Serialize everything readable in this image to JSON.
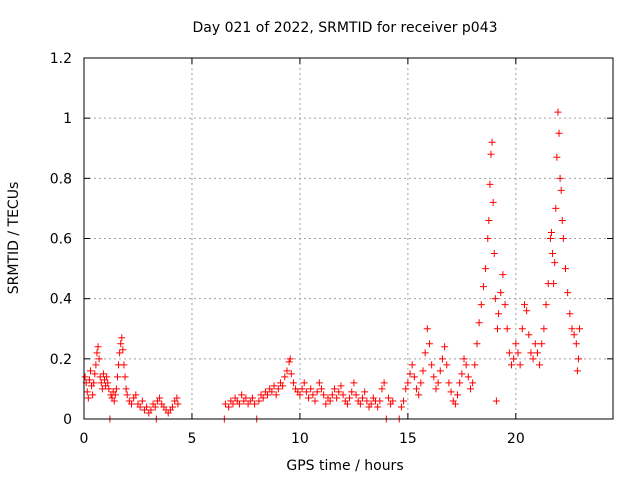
{
  "chart_data": {
    "type": "scatter",
    "title": "Day 021 of 2022, SRMTID for receiver p043",
    "xlabel": "GPS time / hours",
    "ylabel": "SRMTID / TECUs",
    "xlim": [
      0,
      24.5
    ],
    "ylim": [
      0,
      1.2
    ],
    "x_ticks": [
      0,
      5,
      10,
      15,
      20
    ],
    "x_tick_labels": [
      "0",
      "5",
      "10",
      "15",
      "20"
    ],
    "y_ticks": [
      0,
      0.2,
      0.4,
      0.6,
      0.8,
      1.0,
      1.2
    ],
    "y_tick_labels": [
      "0",
      "0.2",
      "0.4",
      "0.6",
      "0.8",
      "1",
      "1.2"
    ],
    "grid": true,
    "marker": "plus",
    "color": "#ff0000",
    "series": [
      {
        "name": "SRMTID",
        "points": [
          [
            0.05,
            0.14
          ],
          [
            0.1,
            0.12
          ],
          [
            0.15,
            0.09
          ],
          [
            0.2,
            0.07
          ],
          [
            0.25,
            0.13
          ],
          [
            0.3,
            0.16
          ],
          [
            0.35,
            0.11
          ],
          [
            0.4,
            0.08
          ],
          [
            0.45,
            0.12
          ],
          [
            0.5,
            0.15
          ],
          [
            0.55,
            0.18
          ],
          [
            0.6,
            0.22
          ],
          [
            0.65,
            0.24
          ],
          [
            0.7,
            0.2
          ],
          [
            0.75,
            0.14
          ],
          [
            0.8,
            0.12
          ],
          [
            0.85,
            0.1
          ],
          [
            0.9,
            0.15
          ],
          [
            0.95,
            0.13
          ],
          [
            1.0,
            0.11
          ],
          [
            1.05,
            0.14
          ],
          [
            1.1,
            0.12
          ],
          [
            1.15,
            0.1
          ],
          [
            1.2,
            0.0
          ],
          [
            1.25,
            0.08
          ],
          [
            1.3,
            0.07
          ],
          [
            1.35,
            0.09
          ],
          [
            1.4,
            0.06
          ],
          [
            1.45,
            0.08
          ],
          [
            1.5,
            0.1
          ],
          [
            1.55,
            0.14
          ],
          [
            1.6,
            0.18
          ],
          [
            1.65,
            0.22
          ],
          [
            1.7,
            0.25
          ],
          [
            1.75,
            0.27
          ],
          [
            1.8,
            0.23
          ],
          [
            1.85,
            0.18
          ],
          [
            1.9,
            0.14
          ],
          [
            1.95,
            0.1
          ],
          [
            2.0,
            0.08
          ],
          [
            2.1,
            0.06
          ],
          [
            2.2,
            0.05
          ],
          [
            2.3,
            0.07
          ],
          [
            2.4,
            0.08
          ],
          [
            2.5,
            0.05
          ],
          [
            2.6,
            0.04
          ],
          [
            2.7,
            0.06
          ],
          [
            2.8,
            0.03
          ],
          [
            2.9,
            0.04
          ],
          [
            3.0,
            0.02
          ],
          [
            3.1,
            0.03
          ],
          [
            3.2,
            0.05
          ],
          [
            3.3,
            0.04
          ],
          [
            3.35,
            0.0
          ],
          [
            3.4,
            0.06
          ],
          [
            3.5,
            0.07
          ],
          [
            3.6,
            0.05
          ],
          [
            3.7,
            0.04
          ],
          [
            3.8,
            0.03
          ],
          [
            3.9,
            0.02
          ],
          [
            4.0,
            0.03
          ],
          [
            4.1,
            0.04
          ],
          [
            4.2,
            0.06
          ],
          [
            4.3,
            0.07
          ],
          [
            4.35,
            0.05
          ],
          [
            6.5,
            0.0
          ],
          [
            6.55,
            0.05
          ],
          [
            6.7,
            0.04
          ],
          [
            6.8,
            0.06
          ],
          [
            6.9,
            0.05
          ],
          [
            7.0,
            0.07
          ],
          [
            7.1,
            0.06
          ],
          [
            7.2,
            0.05
          ],
          [
            7.3,
            0.08
          ],
          [
            7.4,
            0.06
          ],
          [
            7.5,
            0.07
          ],
          [
            7.6,
            0.05
          ],
          [
            7.7,
            0.06
          ],
          [
            7.8,
            0.07
          ],
          [
            7.9,
            0.05
          ],
          [
            8.0,
            0.0
          ],
          [
            8.1,
            0.06
          ],
          [
            8.2,
            0.08
          ],
          [
            8.3,
            0.07
          ],
          [
            8.4,
            0.09
          ],
          [
            8.5,
            0.08
          ],
          [
            8.6,
            0.1
          ],
          [
            8.7,
            0.09
          ],
          [
            8.8,
            0.11
          ],
          [
            8.9,
            0.08
          ],
          [
            9.0,
            0.1
          ],
          [
            9.1,
            0.12
          ],
          [
            9.2,
            0.11
          ],
          [
            9.3,
            0.14
          ],
          [
            9.4,
            0.16
          ],
          [
            9.5,
            0.19
          ],
          [
            9.55,
            0.2
          ],
          [
            9.6,
            0.15
          ],
          [
            9.7,
            0.12
          ],
          [
            9.8,
            0.1
          ],
          [
            9.9,
            0.09
          ],
          [
            10.0,
            0.08
          ],
          [
            10.1,
            0.1
          ],
          [
            10.2,
            0.12
          ],
          [
            10.3,
            0.09
          ],
          [
            10.4,
            0.07
          ],
          [
            10.5,
            0.1
          ],
          [
            10.6,
            0.08
          ],
          [
            10.7,
            0.06
          ],
          [
            10.8,
            0.09
          ],
          [
            10.9,
            0.12
          ],
          [
            11.0,
            0.1
          ],
          [
            11.1,
            0.08
          ],
          [
            11.2,
            0.05
          ],
          [
            11.3,
            0.07
          ],
          [
            11.4,
            0.06
          ],
          [
            11.5,
            0.08
          ],
          [
            11.6,
            0.1
          ],
          [
            11.7,
            0.07
          ],
          [
            11.8,
            0.09
          ],
          [
            11.9,
            0.11
          ],
          [
            12.0,
            0.08
          ],
          [
            12.1,
            0.06
          ],
          [
            12.2,
            0.05
          ],
          [
            12.3,
            0.07
          ],
          [
            12.4,
            0.09
          ],
          [
            12.5,
            0.12
          ],
          [
            12.6,
            0.08
          ],
          [
            12.7,
            0.06
          ],
          [
            12.8,
            0.05
          ],
          [
            12.9,
            0.07
          ],
          [
            13.0,
            0.09
          ],
          [
            13.1,
            0.06
          ],
          [
            13.2,
            0.04
          ],
          [
            13.3,
            0.05
          ],
          [
            13.4,
            0.07
          ],
          [
            13.5,
            0.06
          ],
          [
            13.6,
            0.04
          ],
          [
            13.7,
            0.06
          ],
          [
            13.8,
            0.1
          ],
          [
            13.9,
            0.12
          ],
          [
            14.0,
            0.0
          ],
          [
            14.1,
            0.07
          ],
          [
            14.2,
            0.05
          ],
          [
            14.3,
            0.06
          ],
          [
            14.6,
            0.0
          ],
          [
            14.7,
            0.04
          ],
          [
            14.8,
            0.06
          ],
          [
            14.9,
            0.1
          ],
          [
            15.0,
            0.12
          ],
          [
            15.1,
            0.15
          ],
          [
            15.2,
            0.18
          ],
          [
            15.3,
            0.14
          ],
          [
            15.4,
            0.1
          ],
          [
            15.5,
            0.08
          ],
          [
            15.6,
            0.12
          ],
          [
            15.7,
            0.16
          ],
          [
            15.8,
            0.22
          ],
          [
            15.9,
            0.3
          ],
          [
            16.0,
            0.25
          ],
          [
            16.1,
            0.18
          ],
          [
            16.2,
            0.14
          ],
          [
            16.3,
            0.1
          ],
          [
            16.4,
            0.12
          ],
          [
            16.5,
            0.16
          ],
          [
            16.6,
            0.2
          ],
          [
            16.7,
            0.24
          ],
          [
            16.8,
            0.18
          ],
          [
            16.9,
            0.12
          ],
          [
            17.0,
            0.09
          ],
          [
            17.1,
            0.06
          ],
          [
            17.2,
            0.05
          ],
          [
            17.3,
            0.08
          ],
          [
            17.4,
            0.12
          ],
          [
            17.5,
            0.15
          ],
          [
            17.6,
            0.2
          ],
          [
            17.7,
            0.18
          ],
          [
            17.8,
            0.14
          ],
          [
            17.9,
            0.1
          ],
          [
            18.0,
            0.12
          ],
          [
            18.1,
            0.18
          ],
          [
            18.2,
            0.25
          ],
          [
            18.3,
            0.32
          ],
          [
            18.4,
            0.38
          ],
          [
            18.5,
            0.44
          ],
          [
            18.6,
            0.5
          ],
          [
            18.7,
            0.6
          ],
          [
            18.75,
            0.66
          ],
          [
            18.8,
            0.78
          ],
          [
            18.85,
            0.88
          ],
          [
            18.9,
            0.92
          ],
          [
            18.95,
            0.72
          ],
          [
            19.0,
            0.55
          ],
          [
            19.05,
            0.4
          ],
          [
            19.1,
            0.06
          ],
          [
            19.15,
            0.3
          ],
          [
            19.2,
            0.35
          ],
          [
            19.3,
            0.42
          ],
          [
            19.4,
            0.48
          ],
          [
            19.5,
            0.38
          ],
          [
            19.6,
            0.3
          ],
          [
            19.7,
            0.22
          ],
          [
            19.8,
            0.18
          ],
          [
            19.9,
            0.2
          ],
          [
            20.0,
            0.25
          ],
          [
            20.1,
            0.22
          ],
          [
            20.2,
            0.18
          ],
          [
            20.3,
            0.3
          ],
          [
            20.4,
            0.38
          ],
          [
            20.5,
            0.36
          ],
          [
            20.6,
            0.28
          ],
          [
            20.7,
            0.22
          ],
          [
            20.8,
            0.2
          ],
          [
            20.9,
            0.25
          ],
          [
            21.0,
            0.22
          ],
          [
            21.1,
            0.18
          ],
          [
            21.2,
            0.25
          ],
          [
            21.3,
            0.3
          ],
          [
            21.4,
            0.38
          ],
          [
            21.5,
            0.45
          ],
          [
            21.6,
            0.6
          ],
          [
            21.65,
            0.62
          ],
          [
            21.7,
            0.55
          ],
          [
            21.75,
            0.45
          ],
          [
            21.8,
            0.52
          ],
          [
            21.85,
            0.7
          ],
          [
            21.9,
            0.87
          ],
          [
            21.95,
            1.02
          ],
          [
            22.0,
            0.95
          ],
          [
            22.05,
            0.8
          ],
          [
            22.1,
            0.76
          ],
          [
            22.15,
            0.66
          ],
          [
            22.2,
            0.6
          ],
          [
            22.3,
            0.5
          ],
          [
            22.4,
            0.42
          ],
          [
            22.5,
            0.35
          ],
          [
            22.6,
            0.3
          ],
          [
            22.7,
            0.28
          ],
          [
            22.8,
            0.25
          ],
          [
            22.85,
            0.16
          ],
          [
            22.9,
            0.2
          ],
          [
            22.95,
            0.3
          ]
        ]
      }
    ]
  }
}
